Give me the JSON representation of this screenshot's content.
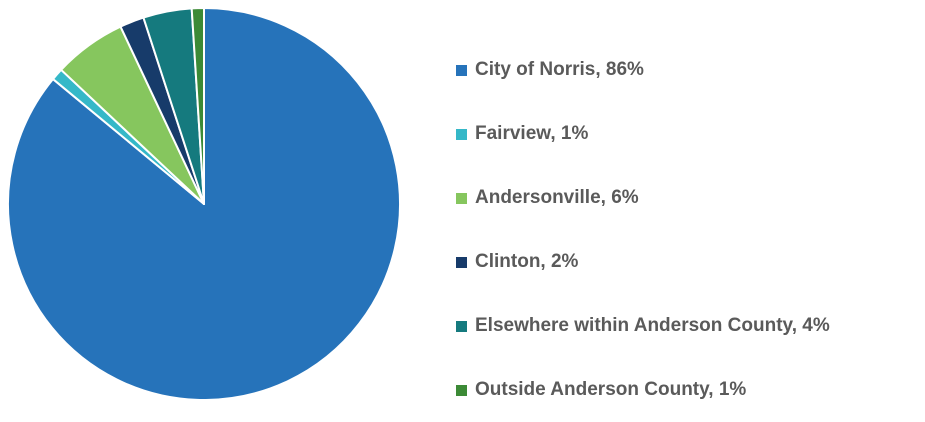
{
  "chart_data": {
    "type": "pie",
    "slices": [
      {
        "label": "City of Norris, 86%",
        "value": 86,
        "color": "#2673BA"
      },
      {
        "label": "Fairview, 1%",
        "value": 1,
        "color": "#35B8C8"
      },
      {
        "label": "Andersonville, 6%",
        "value": 6,
        "color": "#86C65E"
      },
      {
        "label": "Clinton, 2%",
        "value": 2,
        "color": "#173B6A"
      },
      {
        "label": "Elsewhere within Anderson County, 4%",
        "value": 4,
        "color": "#157A7E"
      },
      {
        "label": "Outside Anderson County, 1%",
        "value": 1,
        "color": "#3C8A36"
      }
    ],
    "legend_position": "right"
  }
}
